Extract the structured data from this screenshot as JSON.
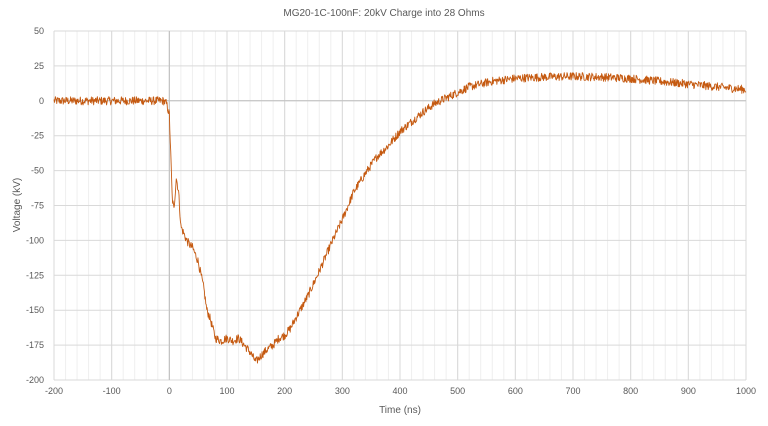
{
  "chart_data": {
    "type": "line",
    "title": "MG20-1C-100nF: 20kV Charge into 28 Ohms",
    "xlabel": "Time (ns)",
    "ylabel": "Voltage (kV)",
    "xlim": [
      -200,
      1000
    ],
    "ylim": [
      -200,
      50
    ],
    "x_ticks": [
      -200,
      -100,
      0,
      100,
      200,
      300,
      400,
      500,
      600,
      700,
      800,
      900,
      1000
    ],
    "y_ticks": [
      -200,
      -175,
      -150,
      -125,
      -100,
      -75,
      -50,
      -25,
      0,
      25,
      50
    ],
    "x_tick_labels": [
      "-200",
      "-100",
      "0",
      "100",
      "200",
      "300",
      "400",
      "500",
      "600",
      "700",
      "800",
      "900",
      "1000"
    ],
    "y_tick_labels": [
      "-200",
      "-175",
      "-150",
      "-125",
      "-100",
      "-75",
      "-50",
      "-25",
      "0",
      "25",
      "50"
    ],
    "grid": true,
    "series": [
      {
        "color": "#C55A11",
        "x": [
          -200,
          -150,
          -100,
          -50,
          -10,
          -5,
          0,
          3,
          5,
          8,
          12,
          16,
          20,
          25,
          30,
          35,
          40,
          45,
          50,
          55,
          60,
          65,
          70,
          80,
          90,
          100,
          110,
          120,
          130,
          140,
          150,
          160,
          170,
          180,
          190,
          200,
          210,
          220,
          240,
          260,
          280,
          300,
          320,
          340,
          360,
          380,
          400,
          420,
          440,
          460,
          480,
          500,
          520,
          540,
          560,
          580,
          600,
          620,
          650,
          700,
          750,
          800,
          850,
          900,
          950,
          1000
        ],
        "y": [
          0,
          0,
          0,
          0,
          0,
          -2,
          -10,
          -45,
          -70,
          -78,
          -55,
          -65,
          -90,
          -95,
          -100,
          -103,
          -105,
          -110,
          -115,
          -125,
          -135,
          -150,
          -155,
          -170,
          -172,
          -170,
          -172,
          -170,
          -175,
          -180,
          -187,
          -182,
          -178,
          -175,
          -170,
          -168,
          -163,
          -155,
          -140,
          -122,
          -103,
          -85,
          -65,
          -52,
          -40,
          -32,
          -22,
          -15,
          -8,
          -2,
          2,
          6,
          10,
          12,
          14,
          15,
          16,
          16.5,
          17,
          17.5,
          17,
          16,
          14,
          12,
          10,
          8
        ]
      }
    ]
  }
}
